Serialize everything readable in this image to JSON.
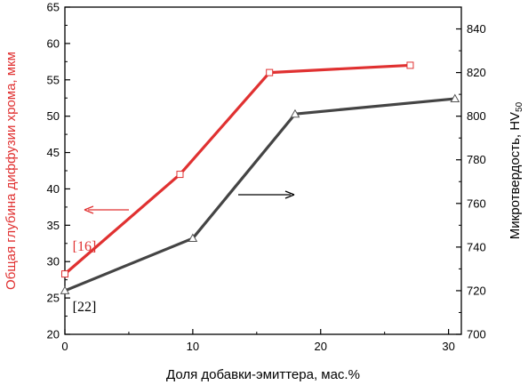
{
  "chart_data": {
    "type": "line",
    "xlabel": "Доля добавки-эмиттера, мас.%",
    "y_left": {
      "label": "Общая глубина диффузии хрома, мкм",
      "min": 20,
      "max": 65,
      "ticks": [
        20,
        25,
        30,
        35,
        40,
        45,
        50,
        55,
        60,
        65
      ],
      "color": "#e03131"
    },
    "y_right": {
      "label_main": "Микротвердость, HV",
      "label_sub": "50",
      "min": 700,
      "max": 850,
      "ticks": [
        700,
        720,
        740,
        760,
        780,
        800,
        820,
        840
      ],
      "color": "#000000"
    },
    "x_axis": {
      "min": 0,
      "max": 31,
      "ticks": [
        0,
        10,
        20,
        30
      ]
    },
    "series": [
      {
        "axis": "left",
        "color": "#e03131",
        "marker": "square",
        "x": [
          0,
          9,
          16,
          27
        ],
        "y": [
          28.3,
          42,
          56,
          57
        ]
      },
      {
        "axis": "right",
        "color": "#444444",
        "marker": "triangle",
        "x": [
          0,
          10,
          18,
          30.5
        ],
        "y": [
          720,
          744,
          801,
          808
        ]
      }
    ],
    "annotations": [
      {
        "text": "[16]",
        "color": "#e03131",
        "x": 0.6,
        "y": 31.5,
        "axis": "left"
      },
      {
        "text": "[22]",
        "color": "#000000",
        "x": 0.6,
        "y": 23.2,
        "axis": "left"
      }
    ]
  }
}
